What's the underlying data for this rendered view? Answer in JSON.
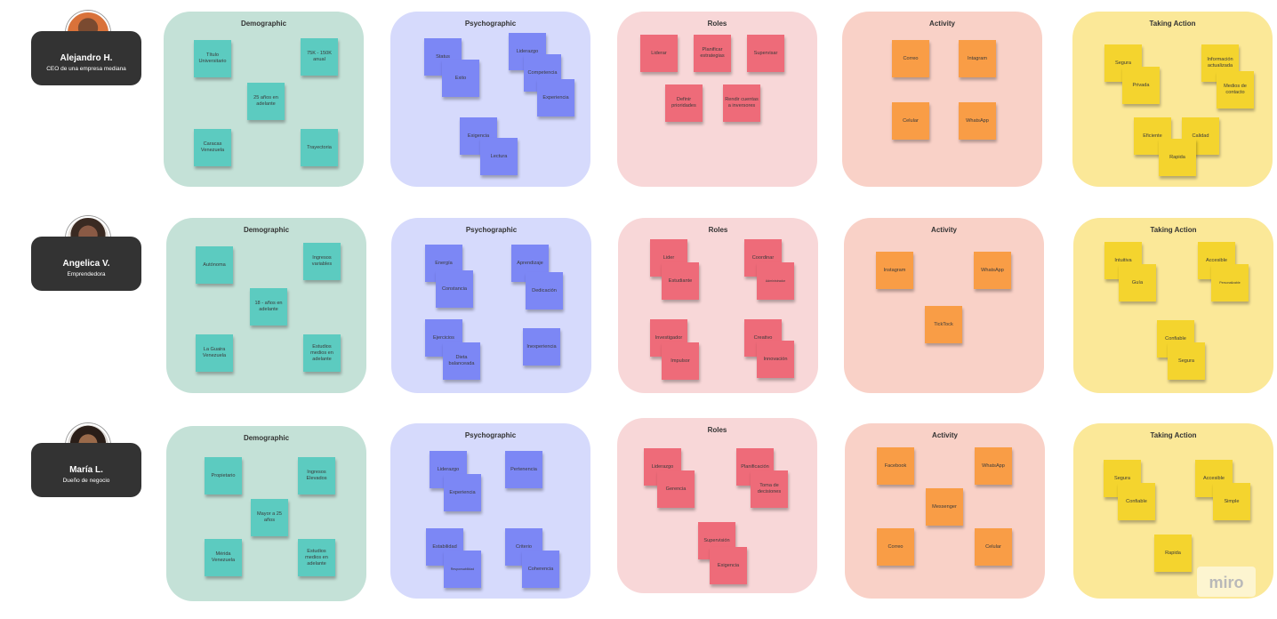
{
  "personas": [
    {
      "name": "Alejandro H.",
      "role": "CEO de una empresa mediana",
      "avatar_bg": "#d9723a"
    },
    {
      "name": "Angelica V.",
      "role": "Emprendedora",
      "avatar_bg": "#6d4a3b"
    },
    {
      "name": "María L.",
      "role": "Dueño de negocio",
      "avatar_bg": "#5a3b2a"
    }
  ],
  "boards": [
    [
      {
        "title": "Demographic",
        "notes": [
          "Título Universitario",
          "75K - 150K anual",
          "25 años en adelante",
          "Caracas Venezuela",
          "Trayectoria"
        ]
      },
      {
        "title": "Psychographic",
        "notes": [
          "Status",
          "Exito",
          "Liderazgo",
          "Competencia",
          "Experiencia",
          "Exigencia",
          "Lectura"
        ]
      },
      {
        "title": "Roles",
        "notes": [
          "Liderar",
          "Planificar estrategias",
          "Supervisar",
          "Definir prioridades",
          "Rendir cuentas a inversores"
        ]
      },
      {
        "title": "Activity",
        "notes": [
          "Correo",
          "Intagram",
          "Celular",
          "WhatsApp"
        ]
      },
      {
        "title": "Taking Action",
        "notes": [
          "Segura",
          "Privada",
          "Información actualizada",
          "Medios de contacto",
          "Eficiente",
          "Calidad",
          "Rapida"
        ]
      }
    ],
    [
      {
        "title": "Demographic",
        "notes": [
          "Autónoma",
          "Ingresos variables",
          "18 - años en adelante",
          "La Guaira Venezuela",
          "Estudios medios en adelante"
        ]
      },
      {
        "title": "Psychographic",
        "notes": [
          "Energía",
          "Constancia",
          "Aprendizaje",
          "Dedicación",
          "Ejercicios",
          "Dieta balanceada",
          "Inexperiencia"
        ]
      },
      {
        "title": "Roles",
        "notes": [
          "Lider",
          "Estudiante",
          "Coordinar",
          "Administrador",
          "Investigador",
          "Impulsor",
          "Creativo",
          "Innovación"
        ]
      },
      {
        "title": "Activity",
        "notes": [
          "Instagram",
          "WhatsApp",
          "TickTock"
        ]
      },
      {
        "title": "Taking Action",
        "notes": [
          "Intuitiva",
          "Guía",
          "Accesible",
          "Personalizable",
          "Confiable",
          "Segura"
        ]
      }
    ],
    [
      {
        "title": "Demographic",
        "notes": [
          "Propietario",
          "Ingresos Elevados",
          "Mayor a 25 años",
          "Mérida Venezuela",
          "Estudios medios en adelante"
        ]
      },
      {
        "title": "Psychographic",
        "notes": [
          "Liderazgo",
          "Experiencia",
          "Pertenencia",
          "Estabilidad",
          "Responsabilidad",
          "Criterio",
          "Coherencia"
        ]
      },
      {
        "title": "Roles",
        "notes": [
          "Liderazgo",
          "Gerencia",
          "Planificación",
          "Toma de decisiones",
          "Supervisión",
          "Exigencia"
        ]
      },
      {
        "title": "Activity",
        "notes": [
          "Facebook",
          "WhatsApp",
          "Messenger",
          "Correo",
          "Celular"
        ]
      },
      {
        "title": "Taking Action",
        "notes": [
          "Segura",
          "Confiable",
          "Accesible",
          "Simple",
          "Rapida"
        ]
      }
    ]
  ],
  "logo": "miro"
}
